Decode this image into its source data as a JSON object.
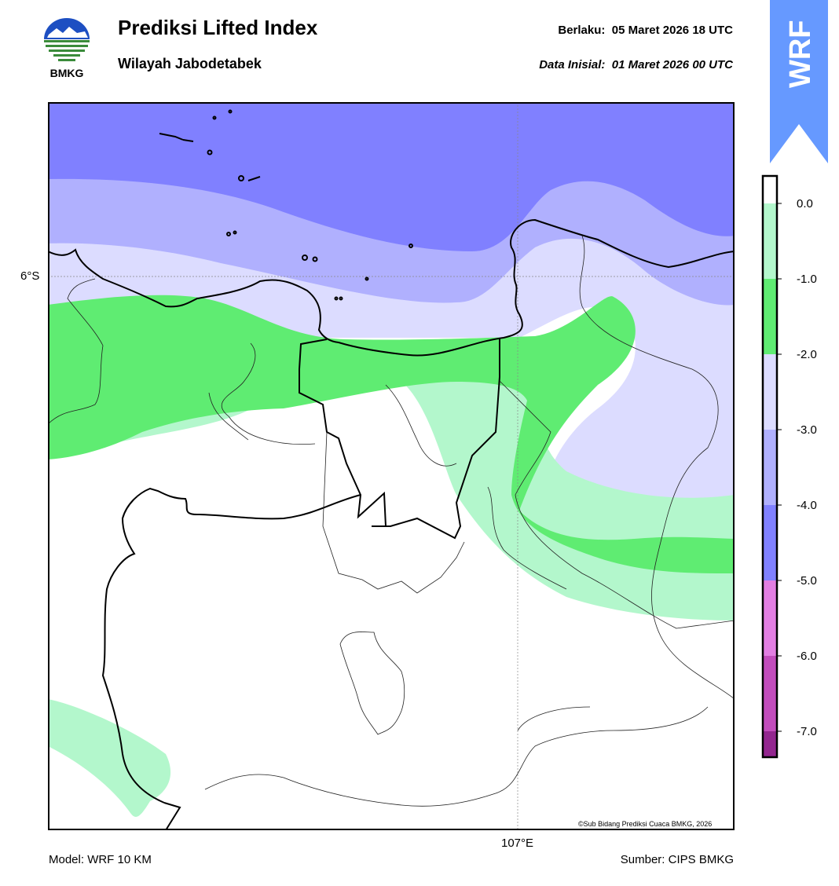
{
  "header": {
    "title": "Prediksi Lifted Index",
    "subtitle": "Wilayah Jabodetabek",
    "valid_label": "Berlaku:",
    "valid_value": "05 Maret 2026 18 UTC",
    "init_label": "Data Inisial:",
    "init_value": "01 Maret 2026 00 UTC"
  },
  "logo": {
    "text": "BMKG",
    "icon": "bmkg-logo-icon"
  },
  "badge": {
    "text": "WRF",
    "color": "#6699ff"
  },
  "map": {
    "lat_label": "6°S",
    "lon_label": "107°E",
    "credit": "©Sub Bidang Prediksi Cuaca BMKG, 2026"
  },
  "legend": {
    "ticks": [
      "0.0",
      "-1.0",
      "-2.0",
      "-3.0",
      "-4.0",
      "-5.0",
      "-6.0",
      "-7.0"
    ],
    "colors": {
      "c0": "#b3f7cc",
      "c1": "#5fec72",
      "c2": "#dcdcff",
      "c3": "#b0b0fe",
      "c4": "#8080ff",
      "c5": "#e27ee2",
      "c6": "#c24cbc",
      "c7": "#93268f"
    }
  },
  "footer": {
    "model": "Model: WRF 10 KM",
    "source": "Sumber: CIPS BMKG"
  }
}
